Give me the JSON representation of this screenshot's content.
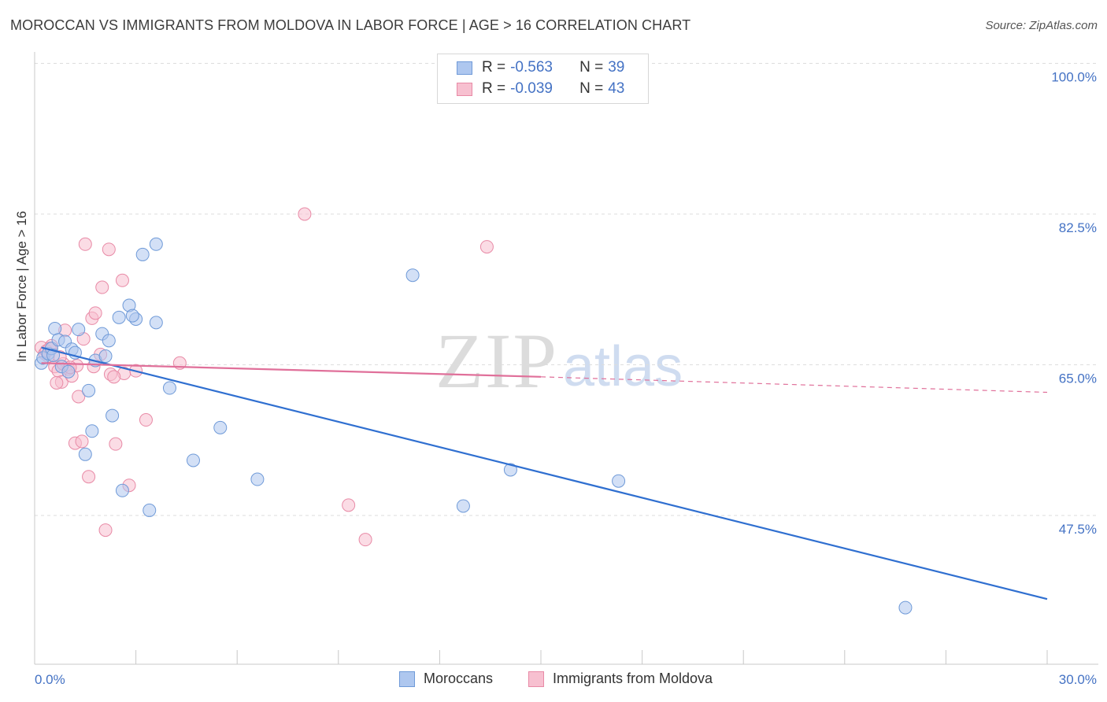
{
  "title": "MOROCCAN VS IMMIGRANTS FROM MOLDOVA IN LABOR FORCE | AGE > 16 CORRELATION CHART",
  "source": "Source: ZipAtlas.com",
  "watermark": {
    "zip": "ZIP",
    "atlas": "atlas"
  },
  "legend_top": [
    {
      "r_label": "R =",
      "r_value": "-0.563",
      "n_label": "N =",
      "n_value": "39",
      "color": "#aec7ef",
      "border": "#6f9ad8"
    },
    {
      "r_label": "R =",
      "r_value": "-0.039",
      "n_label": "N =",
      "n_value": "43",
      "color": "#f7c0d0",
      "border": "#e88aa6"
    }
  ],
  "chart_data": {
    "type": "scatter",
    "title": "MOROCCAN VS IMMIGRANTS FROM MOLDOVA IN LABOR FORCE | AGE > 16 CORRELATION CHART",
    "xlabel": "",
    "ylabel": "In Labor Force | Age > 16",
    "xlim": [
      0,
      30
    ],
    "ylim": [
      35,
      102
    ],
    "x_tick_labels": [
      "0.0%",
      "30.0%"
    ],
    "y_ticks": [
      47.5,
      65.0,
      82.5,
      100.0
    ],
    "y_tick_labels": [
      "47.5%",
      "65.0%",
      "82.5%",
      "100.0%"
    ],
    "grid": true,
    "legend_position": "bottom",
    "series": [
      {
        "name": "Moroccans",
        "color": "#6f9ad8",
        "fill": "#aec7ef",
        "trend_color": "#2f6fd0",
        "trend": {
          "x0": 0.2,
          "y0": 67.0,
          "x1": 30.0,
          "y1": 37.8
        },
        "x": [
          0.2,
          0.25,
          0.4,
          0.5,
          0.6,
          0.7,
          0.8,
          0.9,
          1.0,
          1.1,
          1.3,
          1.5,
          1.6,
          1.7,
          1.8,
          2.0,
          2.1,
          2.2,
          2.3,
          2.5,
          2.6,
          2.8,
          3.0,
          3.2,
          3.4,
          3.6,
          4.0,
          4.7,
          5.5,
          6.6,
          11.2,
          12.7,
          14.1,
          17.3,
          25.8,
          1.2,
          3.6,
          2.9,
          0.55
        ],
        "y": [
          65.2,
          65.8,
          66.3,
          66.9,
          69.2,
          67.9,
          64.8,
          67.7,
          64.2,
          66.8,
          69.1,
          54.6,
          62.0,
          57.3,
          65.5,
          68.6,
          66.0,
          67.8,
          59.1,
          70.5,
          50.4,
          71.9,
          70.3,
          77.8,
          48.1,
          79.0,
          62.3,
          53.9,
          57.7,
          51.7,
          75.4,
          48.6,
          52.8,
          51.5,
          36.8,
          66.4,
          69.9,
          70.7,
          66.1
        ]
      },
      {
        "name": "Immigrants from Moldova",
        "color": "#e88aa6",
        "fill": "#f7c0d0",
        "trend_color": "#e0709a",
        "trend": {
          "x0": 0.2,
          "y0": 65.2,
          "x1": 15.0,
          "y1": 63.6
        },
        "trend_dashed": {
          "x0": 15.0,
          "y0": 63.6,
          "x1": 30.0,
          "y1": 61.8
        },
        "x": [
          0.2,
          0.3,
          0.4,
          0.5,
          0.6,
          0.7,
          0.8,
          0.9,
          1.0,
          1.1,
          1.2,
          1.3,
          1.4,
          1.5,
          1.6,
          1.7,
          1.8,
          2.0,
          2.1,
          2.2,
          2.4,
          2.6,
          2.8,
          3.0,
          3.3,
          4.3,
          8.0,
          13.4,
          9.3,
          9.8,
          0.35,
          0.65,
          0.85,
          1.25,
          1.75,
          2.25,
          2.65,
          0.45,
          0.75,
          1.05,
          1.45,
          1.95,
          2.35
        ],
        "y": [
          67.0,
          66.3,
          66.0,
          67.2,
          64.8,
          64.3,
          63.0,
          69.0,
          64.5,
          63.7,
          55.9,
          61.3,
          56.1,
          79.0,
          52.0,
          70.4,
          71.0,
          74.0,
          45.8,
          78.4,
          55.8,
          74.8,
          51.0,
          64.3,
          58.6,
          65.2,
          82.5,
          78.7,
          48.7,
          44.7,
          66.6,
          62.9,
          65.1,
          64.9,
          64.8,
          63.9,
          64.0,
          66.9,
          65.9,
          64.7,
          68.0,
          66.2,
          63.6
        ]
      }
    ]
  }
}
